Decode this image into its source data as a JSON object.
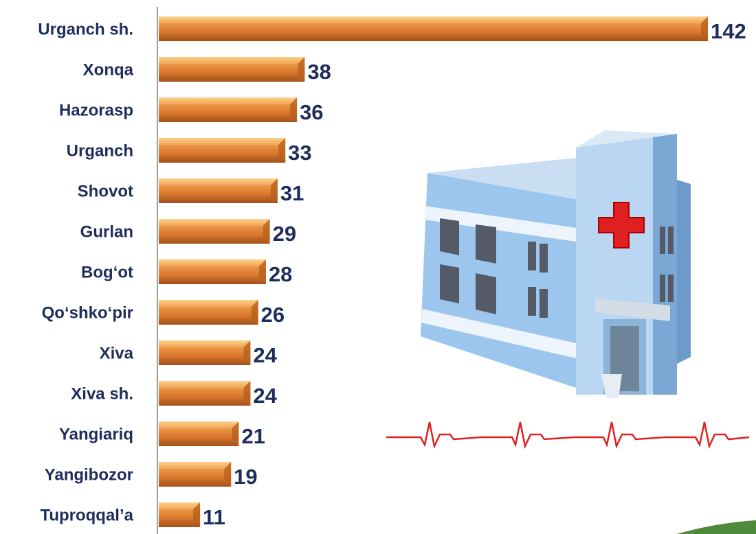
{
  "chart_data": {
    "type": "barh",
    "categories": [
      "Urganch sh.",
      "Xonqa",
      "Hazorasp",
      "Urganch",
      "Shovot",
      "Gurlan",
      "Bog‘ot",
      "Qo‘shko‘pir",
      "Xiva",
      "Xiva sh.",
      "Yangiariq",
      "Yangibozor",
      "Tuproqqal’a"
    ],
    "values": [
      142,
      38,
      36,
      33,
      31,
      29,
      28,
      26,
      24,
      24,
      21,
      19,
      11
    ],
    "color": "#e8893a"
  }
}
